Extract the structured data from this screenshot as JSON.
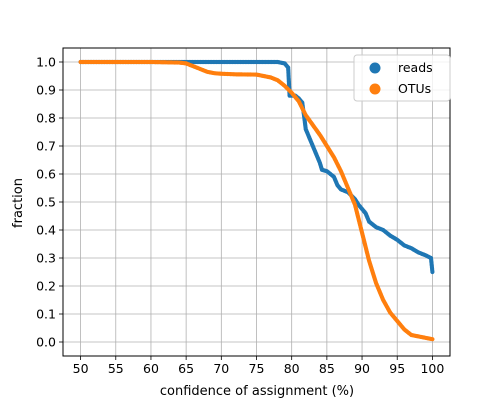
{
  "chart_data": {
    "type": "scatter",
    "xlabel": "confidence of assignment (%)",
    "ylabel": "fraction",
    "xlim": [
      47.5,
      102.5
    ],
    "ylim": [
      -0.05,
      1.05
    ],
    "xticks": [
      50,
      55,
      60,
      65,
      70,
      75,
      80,
      85,
      90,
      95,
      100
    ],
    "yticks": [
      0.0,
      0.1,
      0.2,
      0.3,
      0.4,
      0.5,
      0.6,
      0.7,
      0.8,
      0.9,
      1.0
    ],
    "xtick_labels": [
      "50",
      "55",
      "60",
      "65",
      "70",
      "75",
      "80",
      "85",
      "90",
      "95",
      "100"
    ],
    "ytick_labels": [
      "0.0",
      "0.1",
      "0.2",
      "0.3",
      "0.4",
      "0.5",
      "0.6",
      "0.7",
      "0.8",
      "0.9",
      "1.0"
    ],
    "grid": true,
    "legend_position": "top-right",
    "series": [
      {
        "name": "reads",
        "color": "#1f77b4",
        "points": [
          [
            50,
            1.0
          ],
          [
            55,
            1.0
          ],
          [
            60,
            1.0
          ],
          [
            65,
            1.0
          ],
          [
            70,
            1.0
          ],
          [
            75,
            1.0
          ],
          [
            78,
            1.0
          ],
          [
            79,
            0.995
          ],
          [
            79.5,
            0.98
          ],
          [
            79.7,
            0.88
          ],
          [
            80.5,
            0.88
          ],
          [
            81,
            0.87
          ],
          [
            81.5,
            0.855
          ],
          [
            81.8,
            0.8
          ],
          [
            82,
            0.76
          ],
          [
            82.5,
            0.73
          ],
          [
            83,
            0.7
          ],
          [
            83.5,
            0.67
          ],
          [
            84,
            0.64
          ],
          [
            84.3,
            0.615
          ],
          [
            85,
            0.61
          ],
          [
            86,
            0.59
          ],
          [
            86.5,
            0.56
          ],
          [
            87,
            0.545
          ],
          [
            88,
            0.535
          ],
          [
            89,
            0.51
          ],
          [
            89.5,
            0.49
          ],
          [
            90,
            0.475
          ],
          [
            90.5,
            0.46
          ],
          [
            91,
            0.43
          ],
          [
            91.5,
            0.42
          ],
          [
            92,
            0.41
          ],
          [
            93,
            0.4
          ],
          [
            94,
            0.38
          ],
          [
            95,
            0.365
          ],
          [
            96,
            0.345
          ],
          [
            97,
            0.335
          ],
          [
            98,
            0.32
          ],
          [
            99,
            0.31
          ],
          [
            99.8,
            0.3
          ],
          [
            100,
            0.25
          ]
        ]
      },
      {
        "name": "OTUs",
        "color": "#ff7f0e",
        "points": [
          [
            50,
            1.0
          ],
          [
            55,
            1.0
          ],
          [
            60,
            1.0
          ],
          [
            64,
            0.998
          ],
          [
            65,
            0.995
          ],
          [
            66,
            0.985
          ],
          [
            67,
            0.975
          ],
          [
            68,
            0.965
          ],
          [
            69,
            0.96
          ],
          [
            70,
            0.958
          ],
          [
            72,
            0.956
          ],
          [
            75,
            0.955
          ],
          [
            76,
            0.95
          ],
          [
            77,
            0.945
          ],
          [
            78,
            0.935
          ],
          [
            79,
            0.915
          ],
          [
            80,
            0.89
          ],
          [
            81,
            0.86
          ],
          [
            82,
            0.81
          ],
          [
            83,
            0.775
          ],
          [
            84,
            0.74
          ],
          [
            85,
            0.7
          ],
          [
            86,
            0.66
          ],
          [
            87,
            0.61
          ],
          [
            88,
            0.55
          ],
          [
            89,
            0.49
          ],
          [
            89.5,
            0.44
          ],
          [
            90,
            0.39
          ],
          [
            91,
            0.29
          ],
          [
            92,
            0.21
          ],
          [
            93,
            0.15
          ],
          [
            94,
            0.105
          ],
          [
            95,
            0.075
          ],
          [
            96,
            0.045
          ],
          [
            97,
            0.025
          ],
          [
            98,
            0.02
          ],
          [
            99,
            0.015
          ],
          [
            100,
            0.01
          ]
        ]
      }
    ]
  }
}
